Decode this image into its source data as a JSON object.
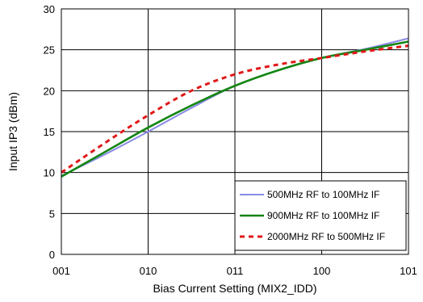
{
  "chart_data": {
    "type": "line",
    "title": "",
    "xlabel": "Bias Current Setting (MIX2_IDD)",
    "ylabel": "Input IP3 (dBm)",
    "categories": [
      "001",
      "010",
      "011",
      "100",
      "101"
    ],
    "ylim": [
      0,
      30
    ],
    "yticks": [
      "0",
      "5",
      "10",
      "15",
      "20",
      "25",
      "30"
    ],
    "grid": true,
    "legend_position": "bottom-right",
    "series": [
      {
        "name": "500MHz RF to 100MHz IF",
        "color": "#8a8ae6",
        "style": "solid-thin",
        "x": [
          0,
          0.5,
          1,
          1.5,
          2,
          2.5,
          3,
          3.5,
          4
        ],
        "y": [
          9.6,
          12.2,
          15.0,
          17.9,
          20.6,
          22.5,
          24.0,
          25.1,
          26.4
        ]
      },
      {
        "name": "900MHz RF to 100MHz IF",
        "color": "#138613",
        "style": "solid-thick",
        "x": [
          0,
          0.5,
          1,
          1.5,
          2,
          2.5,
          3,
          3.5,
          4
        ],
        "y": [
          9.5,
          12.5,
          15.5,
          18.2,
          20.6,
          22.5,
          24.0,
          25.0,
          26.0
        ]
      },
      {
        "name": "2000MHz RF to 500MHz IF",
        "color": "#e01818",
        "style": "dashed",
        "x": [
          0,
          0.5,
          1,
          1.5,
          2,
          2.5,
          3,
          3.5,
          4
        ],
        "y": [
          10.0,
          13.6,
          17.0,
          20.0,
          22.0,
          23.2,
          24.0,
          24.8,
          25.5
        ]
      }
    ]
  }
}
